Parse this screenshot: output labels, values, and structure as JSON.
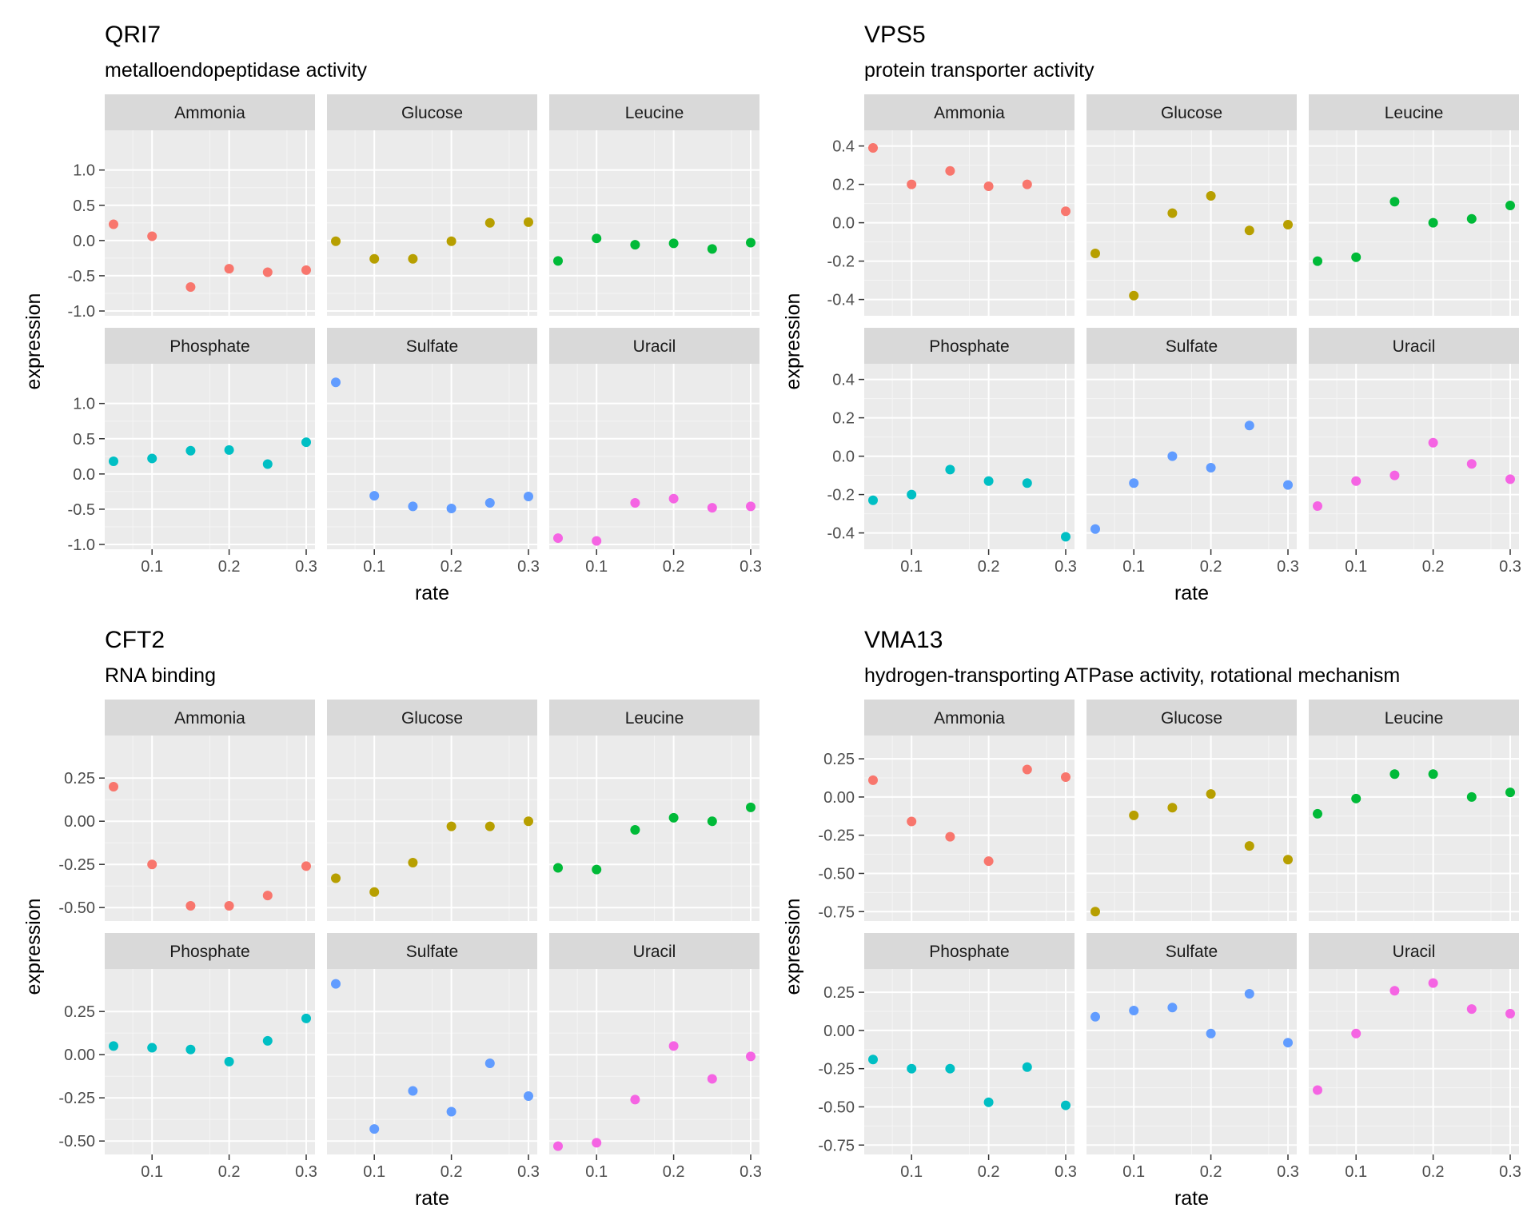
{
  "figure": {
    "panel_colors": {
      "Ammonia": "#F8766D",
      "Glucose": "#B79F00",
      "Leucine": "#00BA38",
      "Phosphate": "#00BFC4",
      "Sulfate": "#619CFF",
      "Uracil": "#F564E3"
    }
  },
  "chart_data": [
    {
      "type": "scatter",
      "title": "QRI7",
      "subtitle": "metalloendopeptidase activity",
      "xlabel": "rate",
      "ylabel": "expression",
      "xlim": [
        0.05,
        0.3
      ],
      "xticks": [
        0.1,
        0.2,
        0.3
      ],
      "xtick_labels": [
        "0.1",
        "0.2",
        "0.3"
      ],
      "rows": [
        {
          "ylim": [
            -1.0,
            1.45
          ],
          "yticks": [
            -1.0,
            -0.5,
            0.0,
            0.5,
            1.0
          ],
          "ytick_labels": [
            "-1.0",
            "-0.5",
            "0.0",
            "0.5",
            "1.0"
          ],
          "facets": [
            {
              "name": "Ammonia",
              "x": [
                0.05,
                0.1,
                0.15,
                0.2,
                0.25,
                0.3
              ],
              "y": [
                0.23,
                0.06,
                -0.66,
                -0.4,
                -0.45,
                -0.42
              ]
            },
            {
              "name": "Glucose",
              "x": [
                0.05,
                0.1,
                0.15,
                0.2,
                0.25,
                0.3
              ],
              "y": [
                -0.01,
                -0.26,
                -0.26,
                -0.01,
                0.25,
                0.26
              ]
            },
            {
              "name": "Leucine",
              "x": [
                0.05,
                0.1,
                0.15,
                0.2,
                0.25,
                0.3
              ],
              "y": [
                -0.29,
                0.03,
                -0.06,
                -0.04,
                -0.12,
                -0.03
              ]
            }
          ]
        },
        {
          "ylim": [
            -1.0,
            1.45
          ],
          "yticks": [
            -1.0,
            -0.5,
            0.0,
            0.5,
            1.0
          ],
          "ytick_labels": [
            "-1.0",
            "-0.5",
            "0.0",
            "0.5",
            "1.0"
          ],
          "facets": [
            {
              "name": "Phosphate",
              "x": [
                0.05,
                0.1,
                0.15,
                0.2,
                0.25,
                0.3
              ],
              "y": [
                0.18,
                0.22,
                0.33,
                0.34,
                0.14,
                0.45
              ]
            },
            {
              "name": "Sulfate",
              "x": [
                0.05,
                0.1,
                0.15,
                0.2,
                0.25,
                0.3
              ],
              "y": [
                1.3,
                -0.31,
                -0.46,
                -0.49,
                -0.41,
                -0.32
              ]
            },
            {
              "name": "Uracil",
              "x": [
                0.05,
                0.1,
                0.15,
                0.2,
                0.25,
                0.3
              ],
              "y": [
                -0.91,
                -0.95,
                -0.41,
                -0.35,
                -0.48,
                -0.46
              ]
            }
          ]
        }
      ]
    },
    {
      "type": "scatter",
      "title": "VPS5",
      "subtitle": "protein transporter activity",
      "xlabel": "rate",
      "ylabel": "expression",
      "xlim": [
        0.05,
        0.3
      ],
      "xticks": [
        0.1,
        0.2,
        0.3
      ],
      "xtick_labels": [
        "0.1",
        "0.2",
        "0.3"
      ],
      "rows": [
        {
          "ylim": [
            -0.46,
            0.44
          ],
          "yticks": [
            -0.4,
            -0.2,
            0.0,
            0.2,
            0.4
          ],
          "ytick_labels": [
            "-0.4",
            "-0.2",
            "0.0",
            "0.2",
            "0.4"
          ],
          "facets": [
            {
              "name": "Ammonia",
              "x": [
                0.05,
                0.1,
                0.15,
                0.2,
                0.25,
                0.3
              ],
              "y": [
                0.39,
                0.2,
                0.27,
                0.19,
                0.2,
                0.06
              ]
            },
            {
              "name": "Glucose",
              "x": [
                0.05,
                0.1,
                0.15,
                0.2,
                0.25,
                0.3
              ],
              "y": [
                -0.16,
                -0.38,
                0.05,
                0.14,
                -0.04,
                -0.01
              ]
            },
            {
              "name": "Leucine",
              "x": [
                0.05,
                0.1,
                0.15,
                0.2,
                0.25,
                0.3
              ],
              "y": [
                -0.2,
                -0.18,
                0.11,
                0.0,
                0.02,
                0.09
              ]
            }
          ]
        },
        {
          "ylim": [
            -0.46,
            0.44
          ],
          "yticks": [
            -0.4,
            -0.2,
            0.0,
            0.2,
            0.4
          ],
          "ytick_labels": [
            "-0.4",
            "-0.2",
            "0.0",
            "0.2",
            "0.4"
          ],
          "facets": [
            {
              "name": "Phosphate",
              "x": [
                0.05,
                0.1,
                0.15,
                0.2,
                0.25,
                0.3
              ],
              "y": [
                -0.23,
                -0.2,
                -0.07,
                -0.13,
                -0.14,
                -0.42
              ]
            },
            {
              "name": "Sulfate",
              "x": [
                0.05,
                0.1,
                0.15,
                0.2,
                0.25,
                0.3
              ],
              "y": [
                -0.38,
                -0.14,
                0.0,
                -0.06,
                0.16,
                -0.15
              ]
            },
            {
              "name": "Uracil",
              "x": [
                0.05,
                0.1,
                0.15,
                0.2,
                0.25,
                0.3
              ],
              "y": [
                -0.26,
                -0.13,
                -0.1,
                0.07,
                -0.04,
                -0.12
              ]
            }
          ]
        }
      ]
    },
    {
      "type": "scatter",
      "title": "CFT2",
      "subtitle": "RNA binding",
      "xlabel": "rate",
      "ylabel": "expression",
      "xlim": [
        0.05,
        0.3
      ],
      "xticks": [
        0.1,
        0.2,
        0.3
      ],
      "xtick_labels": [
        "0.1",
        "0.2",
        "0.3"
      ],
      "rows": [
        {
          "ylim": [
            -0.55,
            0.45
          ],
          "yticks": [
            -0.5,
            -0.25,
            0.0,
            0.25
          ],
          "ytick_labels": [
            "-0.50",
            "-0.25",
            "0.00",
            "0.25"
          ],
          "facets": [
            {
              "name": "Ammonia",
              "x": [
                0.05,
                0.1,
                0.15,
                0.2,
                0.25,
                0.3
              ],
              "y": [
                0.2,
                -0.25,
                -0.49,
                -0.49,
                -0.43,
                -0.26
              ]
            },
            {
              "name": "Glucose",
              "x": [
                0.05,
                0.1,
                0.15,
                0.2,
                0.25,
                0.3
              ],
              "y": [
                -0.33,
                -0.41,
                -0.24,
                -0.03,
                -0.03,
                0.0
              ]
            },
            {
              "name": "Leucine",
              "x": [
                0.05,
                0.1,
                0.15,
                0.2,
                0.25,
                0.3
              ],
              "y": [
                -0.27,
                -0.28,
                -0.05,
                0.02,
                0.0,
                0.08
              ]
            }
          ]
        },
        {
          "ylim": [
            -0.55,
            0.45
          ],
          "yticks": [
            -0.5,
            -0.25,
            0.0,
            0.25
          ],
          "ytick_labels": [
            "-0.50",
            "-0.25",
            "0.00",
            "0.25"
          ],
          "facets": [
            {
              "name": "Phosphate",
              "x": [
                0.05,
                0.1,
                0.15,
                0.2,
                0.25,
                0.3
              ],
              "y": [
                0.05,
                0.04,
                0.03,
                -0.04,
                0.08,
                0.21
              ]
            },
            {
              "name": "Sulfate",
              "x": [
                0.05,
                0.1,
                0.15,
                0.2,
                0.25,
                0.3
              ],
              "y": [
                0.41,
                -0.43,
                -0.21,
                -0.33,
                -0.05,
                -0.24
              ]
            },
            {
              "name": "Uracil",
              "x": [
                0.05,
                0.1,
                0.15,
                0.2,
                0.25,
                0.3
              ],
              "y": [
                -0.53,
                -0.51,
                -0.26,
                0.05,
                -0.14,
                -0.01
              ]
            }
          ]
        }
      ]
    },
    {
      "type": "scatter",
      "title": "VMA13",
      "subtitle": "hydrogen-transporting ATPase activity, rotational mechanism",
      "xlabel": "rate",
      "ylabel": "expression",
      "xlim": [
        0.05,
        0.3
      ],
      "xticks": [
        0.1,
        0.2,
        0.3
      ],
      "xtick_labels": [
        "0.1",
        "0.2",
        "0.3"
      ],
      "rows": [
        {
          "ylim": [
            -0.78,
            0.35
          ],
          "yticks": [
            -0.75,
            -0.5,
            -0.25,
            0.0,
            0.25
          ],
          "ytick_labels": [
            "-0.75",
            "-0.50",
            "-0.25",
            "0.00",
            "0.25"
          ],
          "facets": [
            {
              "name": "Ammonia",
              "x": [
                0.05,
                0.1,
                0.15,
                0.2,
                0.25,
                0.3
              ],
              "y": [
                0.11,
                -0.16,
                -0.26,
                -0.42,
                0.18,
                0.13
              ]
            },
            {
              "name": "Glucose",
              "x": [
                0.05,
                0.1,
                0.15,
                0.2,
                0.25,
                0.3
              ],
              "y": [
                -0.75,
                -0.12,
                -0.07,
                0.02,
                -0.32,
                -0.41
              ]
            },
            {
              "name": "Leucine",
              "x": [
                0.05,
                0.1,
                0.15,
                0.2,
                0.25,
                0.3
              ],
              "y": [
                -0.11,
                -0.01,
                0.15,
                0.15,
                0.0,
                0.03
              ]
            }
          ]
        },
        {
          "ylim": [
            -0.78,
            0.35
          ],
          "yticks": [
            -0.75,
            -0.5,
            -0.25,
            0.0,
            0.25
          ],
          "ytick_labels": [
            "-0.75",
            "-0.50",
            "-0.25",
            "0.00",
            "0.25"
          ],
          "facets": [
            {
              "name": "Phosphate",
              "x": [
                0.05,
                0.1,
                0.15,
                0.2,
                0.25,
                0.3
              ],
              "y": [
                -0.19,
                -0.25,
                -0.25,
                -0.47,
                -0.24,
                -0.49
              ]
            },
            {
              "name": "Sulfate",
              "x": [
                0.05,
                0.1,
                0.15,
                0.2,
                0.25,
                0.3
              ],
              "y": [
                0.09,
                0.13,
                0.15,
                -0.02,
                0.24,
                -0.08
              ]
            },
            {
              "name": "Uracil",
              "x": [
                0.05,
                0.1,
                0.15,
                0.2,
                0.25,
                0.3
              ],
              "y": [
                -0.39,
                -0.02,
                0.26,
                0.31,
                0.14,
                0.11
              ]
            }
          ]
        }
      ]
    }
  ]
}
